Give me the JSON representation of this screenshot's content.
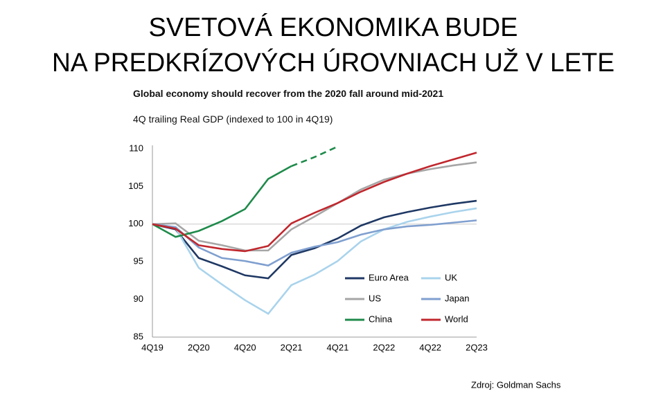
{
  "title_lines": [
    "SVETOVÁ EKONOMIKA BUDE",
    "NA PREDKRÍZOVÝCH ÚROVNIACH UŽ V LETE"
  ],
  "source": "Zdroj: Goldman Sachs",
  "chart_data": {
    "type": "line",
    "title": "Global economy should recover from the 2020 fall around mid-2021",
    "subtitle": "4Q trailing Real GDP (indexed to 100 in 4Q19)",
    "categories": [
      "4Q19",
      null,
      "2Q20",
      null,
      "4Q20",
      null,
      "2Q21",
      null,
      "4Q21",
      null,
      "2Q22",
      null,
      "4Q22",
      null,
      "2Q23"
    ],
    "ylim": [
      85,
      110
    ],
    "yticks": [
      85,
      90,
      95,
      100,
      105,
      110
    ],
    "reference_line": 100,
    "series": [
      {
        "name": "Euro Area",
        "color": "#1f3864",
        "values": [
          100,
          99.3,
          95.5,
          94.4,
          93.2,
          92.8,
          95.9,
          96.8,
          98.1,
          99.8,
          100.9,
          101.6,
          102.2,
          102.7,
          103.1
        ]
      },
      {
        "name": "UK",
        "color": "#a9d3ec",
        "values": [
          100,
          99.5,
          94.2,
          92,
          89.9,
          88.1,
          91.9,
          93.3,
          95.1,
          97.7,
          99.3,
          100.3,
          101,
          101.6,
          102.1
        ]
      },
      {
        "name": "US",
        "color": "#a6a6a6",
        "values": [
          100,
          100.1,
          97.8,
          97.2,
          96.5,
          96.5,
          99.3,
          101,
          102.8,
          104.6,
          105.9,
          106.7,
          107.3,
          107.8,
          108.2
        ]
      },
      {
        "name": "Japan",
        "color": "#7f9fcf",
        "values": [
          100,
          99.6,
          96.9,
          95.5,
          95.1,
          94.5,
          96.2,
          97,
          97.6,
          98.6,
          99.3,
          99.7,
          99.9,
          100.2,
          100.5
        ]
      },
      {
        "name": "China",
        "color": "#1e8a4a",
        "dash_start": 6,
        "values": [
          100,
          98.3,
          99.1,
          100.4,
          102,
          106,
          107.7,
          108.9,
          110.3,
          null,
          null,
          null,
          null,
          null,
          null
        ]
      },
      {
        "name": "World",
        "color": "#c0272d",
        "values": [
          100,
          99.4,
          97.2,
          96.7,
          96.4,
          97.1,
          100.1,
          101.5,
          102.8,
          104.3,
          105.6,
          106.7,
          107.7,
          108.6,
          109.5
        ]
      }
    ]
  }
}
